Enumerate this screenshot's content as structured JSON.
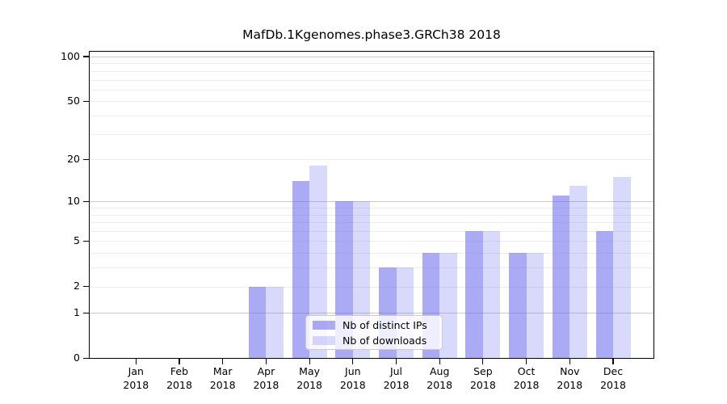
{
  "chart_data": {
    "type": "bar",
    "title": "MafDb.1Kgenomes.phase3.GRCh38 2018",
    "months": [
      "Jan",
      "Feb",
      "Mar",
      "Apr",
      "May",
      "Jun",
      "Jul",
      "Aug",
      "Sep",
      "Oct",
      "Nov",
      "Dec"
    ],
    "year": "2018",
    "series": [
      {
        "name": "Nb of distinct IPs",
        "color": "#6c6cee",
        "alpha": 0.58,
        "values": [
          0,
          0,
          0,
          2,
          14,
          10,
          3,
          4,
          6,
          4,
          11,
          6
        ]
      },
      {
        "name": "Nb of downloads",
        "color": "#6c6cee",
        "alpha": 0.26,
        "values": [
          0,
          0,
          0,
          2,
          18,
          10,
          3,
          4,
          6,
          4,
          13,
          15
        ]
      }
    ],
    "y_axis": {
      "scale": "log10(1+v)",
      "tick_values": [
        0,
        1,
        2,
        5,
        10,
        20,
        50,
        100
      ],
      "tick_labels": [
        "0",
        "1",
        "2",
        "5",
        "10",
        "20",
        "50",
        "100"
      ],
      "emphasized_gridlines": [
        1,
        10,
        100
      ],
      "light_gridlines": [
        2,
        3,
        4,
        5,
        6,
        7,
        8,
        9,
        20,
        30,
        40,
        50,
        60,
        70,
        80,
        90
      ],
      "ylim": [
        0,
        109
      ]
    },
    "xlabel": "",
    "ylabel": "",
    "grid": true,
    "legend_position": "bottom-center",
    "colors": {
      "bar_base": "#6c6cee",
      "grid_major": "#c9c9c9",
      "grid_minor": "#ececec",
      "axis": "#000000"
    }
  }
}
